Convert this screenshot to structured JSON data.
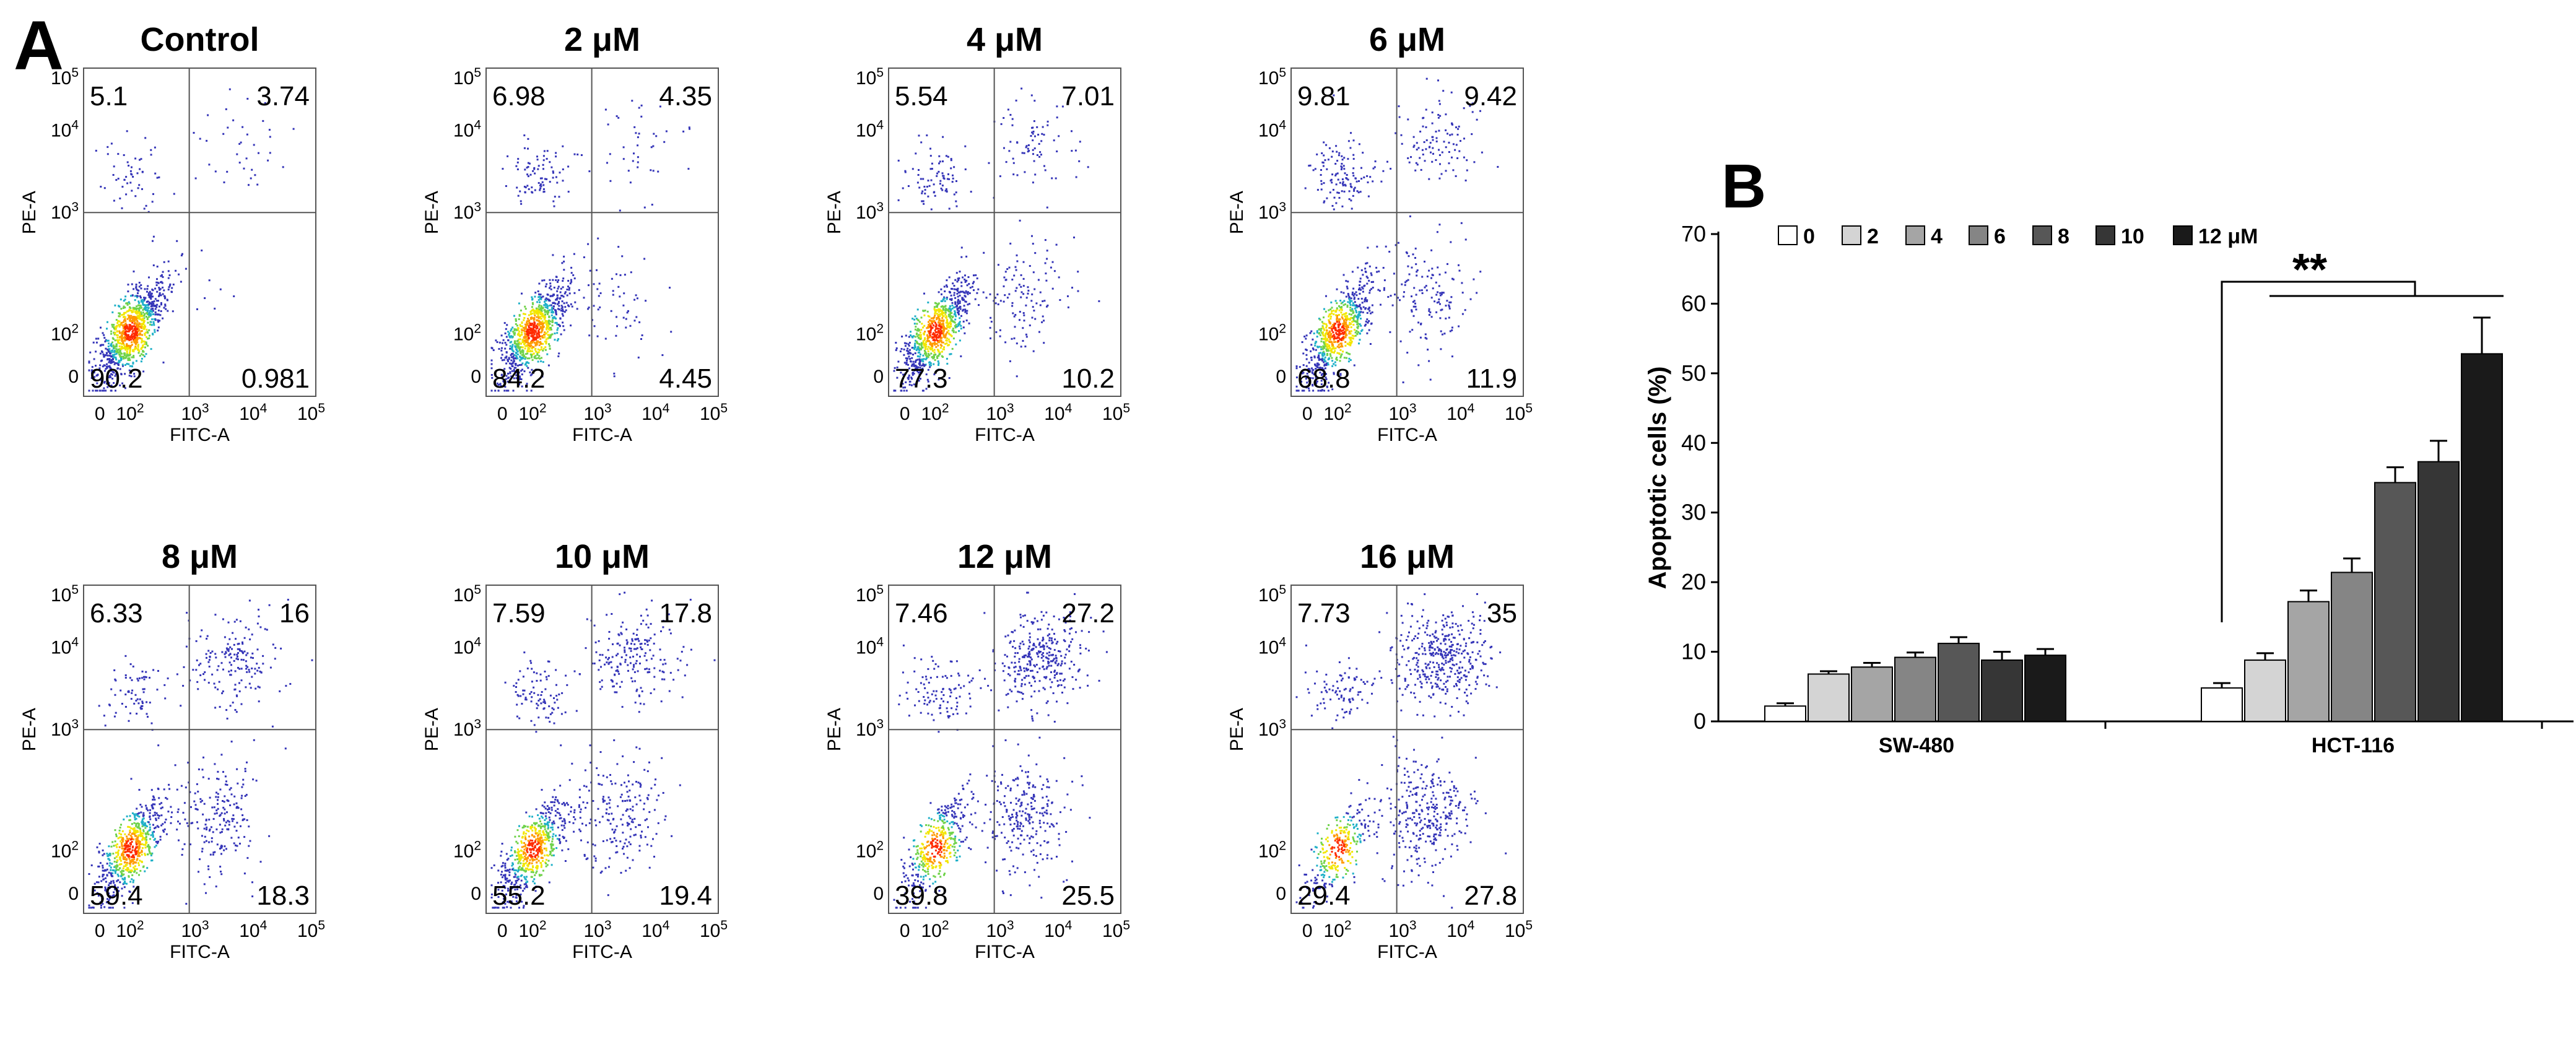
{
  "panel_a_label": "A",
  "panel_b_label": "B",
  "chart_data": [
    {
      "type": "scatter",
      "subtype": "flow-cytometry-quadrant-plots",
      "x_axis_label": "FITC-A",
      "y_axis_label": "PE-A",
      "x_ticks": [
        {
          "base": "0",
          "exp": ""
        },
        {
          "base": "10",
          "exp": "2"
        },
        {
          "base": "10",
          "exp": "3"
        },
        {
          "base": "10",
          "exp": "4"
        },
        {
          "base": "10",
          "exp": "5"
        }
      ],
      "y_ticks": [
        {
          "base": "0",
          "exp": ""
        },
        {
          "base": "10",
          "exp": "2"
        },
        {
          "base": "10",
          "exp": "3"
        },
        {
          "base": "10",
          "exp": "4"
        },
        {
          "base": "10",
          "exp": "5"
        }
      ],
      "panels": [
        {
          "title": "Control",
          "q_upper_left": "5.1",
          "q_upper_right": "3.74",
          "q_lower_left": "90.2",
          "q_lower_right": "0.981"
        },
        {
          "title": "2 μM",
          "q_upper_left": "6.98",
          "q_upper_right": "4.35",
          "q_lower_left": "84.2",
          "q_lower_right": "4.45"
        },
        {
          "title": "4 μM",
          "q_upper_left": "5.54",
          "q_upper_right": "7.01",
          "q_lower_left": "77.3",
          "q_lower_right": "10.2"
        },
        {
          "title": "6 μM",
          "q_upper_left": "9.81",
          "q_upper_right": "9.42",
          "q_lower_left": "68.8",
          "q_lower_right": "11.9"
        },
        {
          "title": "8 μM",
          "q_upper_left": "6.33",
          "q_upper_right": "16",
          "q_lower_left": "59.4",
          "q_lower_right": "18.3"
        },
        {
          "title": "10 μM",
          "q_upper_left": "7.59",
          "q_upper_right": "17.8",
          "q_lower_left": "55.2",
          "q_lower_right": "19.4"
        },
        {
          "title": "12 μM",
          "q_upper_left": "7.46",
          "q_upper_right": "27.2",
          "q_lower_left": "39.8",
          "q_lower_right": "25.5"
        },
        {
          "title": "16 μM",
          "q_upper_left": "7.73",
          "q_upper_right": "35",
          "q_lower_left": "29.4",
          "q_lower_right": "27.8"
        }
      ]
    },
    {
      "type": "bar",
      "ylabel": "Apoptotic cells (%)",
      "ylim": [
        0,
        70
      ],
      "yticks": [
        0,
        10,
        20,
        30,
        40,
        50,
        60,
        70
      ],
      "categories": [
        "SW-480",
        "HCT-116"
      ],
      "legend": [
        "0",
        "2",
        "4",
        "6",
        "8",
        "10",
        "12 μM"
      ],
      "legend_position": "top",
      "series_colors": [
        "#ffffff",
        "#d4d4d4",
        "#a5a5a5",
        "#858585",
        "#575757",
        "#363636",
        "#1a1a1a"
      ],
      "series": [
        {
          "name": "0",
          "values": [
            2.2,
            4.8
          ],
          "errors": [
            0.4,
            0.7
          ]
        },
        {
          "name": "2",
          "values": [
            6.8,
            8.8
          ],
          "errors": [
            0.4,
            1.0
          ]
        },
        {
          "name": "4",
          "values": [
            7.8,
            17.2
          ],
          "errors": [
            0.6,
            1.6
          ]
        },
        {
          "name": "6",
          "values": [
            9.2,
            21.4
          ],
          "errors": [
            0.7,
            2.0
          ]
        },
        {
          "name": "8",
          "values": [
            11.2,
            34.3
          ],
          "errors": [
            0.9,
            2.2
          ]
        },
        {
          "name": "10",
          "values": [
            8.8,
            37.3
          ],
          "errors": [
            1.2,
            3.0
          ]
        },
        {
          "name": "12 μM",
          "values": [
            9.5,
            52.8
          ],
          "errors": [
            0.9,
            5.2
          ]
        }
      ],
      "annotation": "**"
    }
  ]
}
